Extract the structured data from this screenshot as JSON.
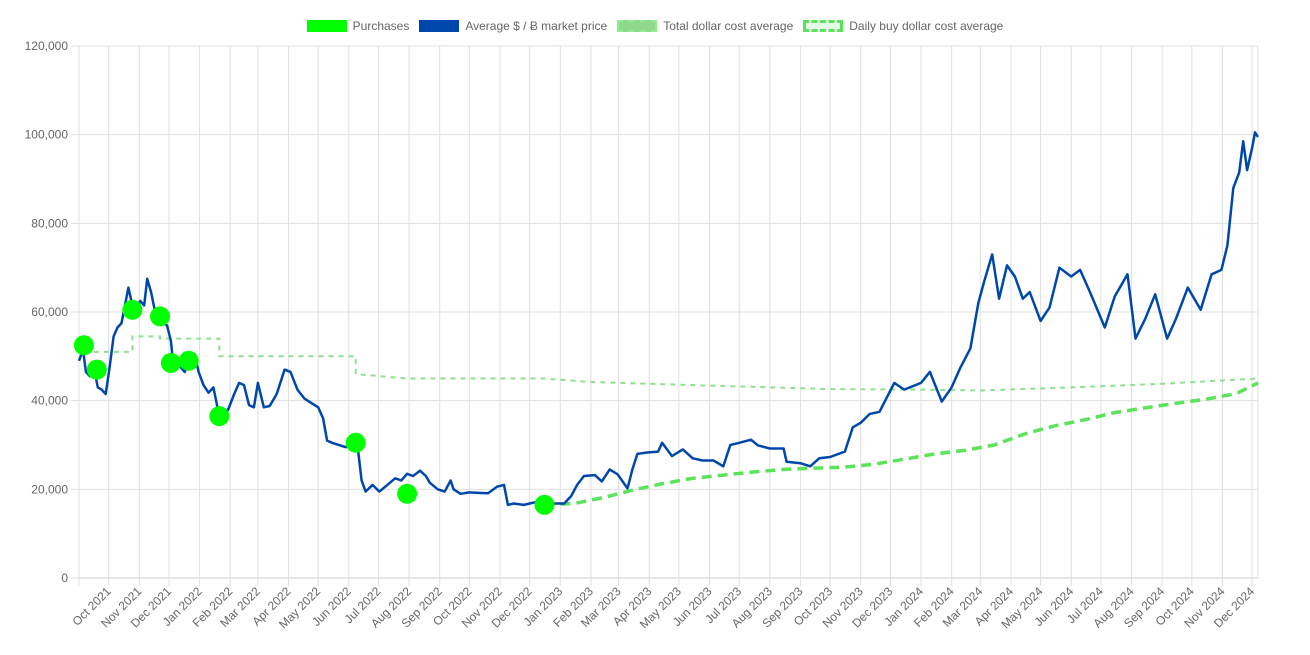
{
  "legend": [
    {
      "label": "Purchases",
      "key": "purchases"
    },
    {
      "label": "Average $ / Ƀ market price",
      "key": "market"
    },
    {
      "label": "Total dollar cost average",
      "key": "total"
    },
    {
      "label": "Daily buy dollar cost average",
      "key": "daily"
    }
  ],
  "colors": {
    "purchases": "#00ff00",
    "market": "#0047ab",
    "total": "#90e090",
    "daily": "#5be35b",
    "grid": "#e0e0e0",
    "tick": "#666666"
  },
  "chart_data": {
    "type": "line",
    "title": "",
    "xlabel": "",
    "ylabel": "",
    "ylim": [
      0,
      120000
    ],
    "y_ticks": [
      "0",
      "20,000",
      "40,000",
      "60,000",
      "80,000",
      "100,000",
      "120,000"
    ],
    "y_tick_values": [
      0,
      20000,
      40000,
      60000,
      80000,
      100000,
      120000
    ],
    "x_range": [
      "2021-09-01",
      "2024-12-07"
    ],
    "x_ticks": [
      {
        "label": "Oct 2021",
        "date": "2021-10-01"
      },
      {
        "label": "Nov 2021",
        "date": "2021-11-01"
      },
      {
        "label": "Dec 2021",
        "date": "2021-12-01"
      },
      {
        "label": "Jan 2022",
        "date": "2022-01-01"
      },
      {
        "label": "Feb 2022",
        "date": "2022-02-01"
      },
      {
        "label": "Mar 2022",
        "date": "2022-03-01"
      },
      {
        "label": "Apr 2022",
        "date": "2022-04-01"
      },
      {
        "label": "May 2022",
        "date": "2022-05-01"
      },
      {
        "label": "Jun 2022",
        "date": "2022-06-01"
      },
      {
        "label": "Jul 2022",
        "date": "2022-07-01"
      },
      {
        "label": "Aug 2022",
        "date": "2022-08-01"
      },
      {
        "label": "Sep 2022",
        "date": "2022-09-01"
      },
      {
        "label": "Oct 2022",
        "date": "2022-10-01"
      },
      {
        "label": "Nov 2022",
        "date": "2022-11-01"
      },
      {
        "label": "Dec 2022",
        "date": "2022-12-01"
      },
      {
        "label": "Jan 2023",
        "date": "2023-01-01"
      },
      {
        "label": "Feb 2023",
        "date": "2023-02-01"
      },
      {
        "label": "Mar 2023",
        "date": "2023-03-01"
      },
      {
        "label": "Apr 2023",
        "date": "2023-04-01"
      },
      {
        "label": "May 2023",
        "date": "2023-05-01"
      },
      {
        "label": "Jun 2023",
        "date": "2023-06-01"
      },
      {
        "label": "Jul 2023",
        "date": "2023-07-01"
      },
      {
        "label": "Aug 2023",
        "date": "2023-08-01"
      },
      {
        "label": "Sep 2023",
        "date": "2023-09-01"
      },
      {
        "label": "Oct 2023",
        "date": "2023-10-01"
      },
      {
        "label": "Nov 2023",
        "date": "2023-11-01"
      },
      {
        "label": "Dec 2023",
        "date": "2023-12-01"
      },
      {
        "label": "Jan 2024",
        "date": "2024-01-01"
      },
      {
        "label": "Feb 2024",
        "date": "2024-02-01"
      },
      {
        "label": "Mar 2024",
        "date": "2024-03-01"
      },
      {
        "label": "Apr 2024",
        "date": "2024-04-01"
      },
      {
        "label": "May 2024",
        "date": "2024-05-01"
      },
      {
        "label": "Jun 2024",
        "date": "2024-06-01"
      },
      {
        "label": "Jul 2024",
        "date": "2024-07-01"
      },
      {
        "label": "Aug 2024",
        "date": "2024-08-01"
      },
      {
        "label": "Sep 2024",
        "date": "2024-09-01"
      },
      {
        "label": "Oct 2024",
        "date": "2024-10-01"
      },
      {
        "label": "Nov 2024",
        "date": "2024-11-01"
      },
      {
        "label": "Dec 2024",
        "date": "2024-12-01"
      }
    ],
    "grid": true,
    "legend_position": "top",
    "series": [
      {
        "name": "Purchases",
        "type": "scatter",
        "points": [
          [
            "2021-09-06",
            52500
          ],
          [
            "2021-09-19",
            47000
          ],
          [
            "2021-10-25",
            60500
          ],
          [
            "2021-11-22",
            59000
          ],
          [
            "2021-12-03",
            48500
          ],
          [
            "2021-12-21",
            49000
          ],
          [
            "2022-01-21",
            36500
          ],
          [
            "2022-06-08",
            30500
          ],
          [
            "2022-07-30",
            19000
          ],
          [
            "2022-12-16",
            16500
          ]
        ]
      },
      {
        "name": "Average $ / Ƀ market price",
        "type": "line",
        "points": [
          [
            "2021-09-01",
            49000
          ],
          [
            "2021-09-05",
            51500
          ],
          [
            "2021-09-08",
            46500
          ],
          [
            "2021-09-12",
            45500
          ],
          [
            "2021-09-16",
            47500
          ],
          [
            "2021-09-20",
            43000
          ],
          [
            "2021-09-24",
            42500
          ],
          [
            "2021-09-28",
            41500
          ],
          [
            "2021-10-02",
            47500
          ],
          [
            "2021-10-06",
            54500
          ],
          [
            "2021-10-10",
            56500
          ],
          [
            "2021-10-14",
            57500
          ],
          [
            "2021-10-18",
            62000
          ],
          [
            "2021-10-21",
            65500
          ],
          [
            "2021-10-25",
            61500
          ],
          [
            "2021-10-29",
            61000
          ],
          [
            "2021-11-02",
            62500
          ],
          [
            "2021-11-06",
            61500
          ],
          [
            "2021-11-09",
            67500
          ],
          [
            "2021-11-13",
            64500
          ],
          [
            "2021-11-17",
            60000
          ],
          [
            "2021-11-21",
            58500
          ],
          [
            "2021-11-25",
            57500
          ],
          [
            "2021-11-29",
            57000
          ],
          [
            "2021-12-03",
            53500
          ],
          [
            "2021-12-05",
            49000
          ],
          [
            "2021-12-09",
            48500
          ],
          [
            "2021-12-13",
            47500
          ],
          [
            "2021-12-17",
            46500
          ],
          [
            "2021-12-21",
            48500
          ],
          [
            "2021-12-27",
            50500
          ],
          [
            "2021-12-31",
            46500
          ],
          [
            "2022-01-05",
            43500
          ],
          [
            "2022-01-10",
            41800
          ],
          [
            "2022-01-15",
            43000
          ],
          [
            "2022-01-21",
            36500
          ],
          [
            "2022-01-24",
            36000
          ],
          [
            "2022-01-30",
            38000
          ],
          [
            "2022-02-05",
            41500
          ],
          [
            "2022-02-10",
            44000
          ],
          [
            "2022-02-15",
            43500
          ],
          [
            "2022-02-20",
            39000
          ],
          [
            "2022-02-25",
            38500
          ],
          [
            "2022-03-01",
            44000
          ],
          [
            "2022-03-07",
            38500
          ],
          [
            "2022-03-13",
            38800
          ],
          [
            "2022-03-20",
            41500
          ],
          [
            "2022-03-28",
            47000
          ],
          [
            "2022-04-03",
            46500
          ],
          [
            "2022-04-10",
            42500
          ],
          [
            "2022-04-17",
            40500
          ],
          [
            "2022-04-24",
            39500
          ],
          [
            "2022-05-01",
            38500
          ],
          [
            "2022-05-06",
            36000
          ],
          [
            "2022-05-10",
            31000
          ],
          [
            "2022-05-15",
            30500
          ],
          [
            "2022-05-22",
            30000
          ],
          [
            "2022-05-29",
            29500
          ],
          [
            "2022-06-05",
            30500
          ],
          [
            "2022-06-10",
            29500
          ],
          [
            "2022-06-14",
            22000
          ],
          [
            "2022-06-18",
            19500
          ],
          [
            "2022-06-25",
            21000
          ],
          [
            "2022-07-02",
            19500
          ],
          [
            "2022-07-10",
            21000
          ],
          [
            "2022-07-18",
            22500
          ],
          [
            "2022-07-24",
            22000
          ],
          [
            "2022-07-30",
            23500
          ],
          [
            "2022-08-05",
            23000
          ],
          [
            "2022-08-12",
            24200
          ],
          [
            "2022-08-18",
            23000
          ],
          [
            "2022-08-22",
            21500
          ],
          [
            "2022-08-30",
            20000
          ],
          [
            "2022-09-06",
            19500
          ],
          [
            "2022-09-12",
            22000
          ],
          [
            "2022-09-15",
            20000
          ],
          [
            "2022-09-22",
            19000
          ],
          [
            "2022-10-01",
            19300
          ],
          [
            "2022-10-10",
            19200
          ],
          [
            "2022-10-20",
            19100
          ],
          [
            "2022-10-29",
            20600
          ],
          [
            "2022-11-05",
            21000
          ],
          [
            "2022-11-09",
            16500
          ],
          [
            "2022-11-15",
            16800
          ],
          [
            "2022-11-25",
            16500
          ],
          [
            "2022-12-05",
            17000
          ],
          [
            "2022-12-15",
            17200
          ],
          [
            "2022-12-25",
            16800
          ],
          [
            "2023-01-05",
            16800
          ],
          [
            "2023-01-12",
            18500
          ],
          [
            "2023-01-18",
            21000
          ],
          [
            "2023-01-25",
            23000
          ],
          [
            "2023-02-05",
            23200
          ],
          [
            "2023-02-12",
            21800
          ],
          [
            "2023-02-20",
            24500
          ],
          [
            "2023-02-28",
            23400
          ],
          [
            "2023-03-10",
            20200
          ],
          [
            "2023-03-15",
            24500
          ],
          [
            "2023-03-20",
            28000
          ],
          [
            "2023-03-30",
            28300
          ],
          [
            "2023-04-10",
            28500
          ],
          [
            "2023-04-14",
            30500
          ],
          [
            "2023-04-24",
            27500
          ],
          [
            "2023-05-05",
            29000
          ],
          [
            "2023-05-15",
            27000
          ],
          [
            "2023-05-25",
            26500
          ],
          [
            "2023-06-05",
            26500
          ],
          [
            "2023-06-15",
            25200
          ],
          [
            "2023-06-22",
            30000
          ],
          [
            "2023-07-01",
            30500
          ],
          [
            "2023-07-13",
            31200
          ],
          [
            "2023-07-20",
            29900
          ],
          [
            "2023-08-01",
            29200
          ],
          [
            "2023-08-15",
            29200
          ],
          [
            "2023-08-18",
            26200
          ],
          [
            "2023-09-01",
            25900
          ],
          [
            "2023-09-11",
            25200
          ],
          [
            "2023-09-20",
            27000
          ],
          [
            "2023-10-01",
            27300
          ],
          [
            "2023-10-16",
            28500
          ],
          [
            "2023-10-24",
            34000
          ],
          [
            "2023-11-01",
            35000
          ],
          [
            "2023-11-10",
            37000
          ],
          [
            "2023-11-20",
            37500
          ],
          [
            "2023-12-05",
            44000
          ],
          [
            "2023-12-15",
            42500
          ],
          [
            "2024-01-01",
            44000
          ],
          [
            "2024-01-10",
            46500
          ],
          [
            "2024-01-22",
            39800
          ],
          [
            "2024-02-01",
            43000
          ],
          [
            "2024-02-10",
            47500
          ],
          [
            "2024-02-20",
            51800
          ],
          [
            "2024-02-28",
            62000
          ],
          [
            "2024-03-05",
            67000
          ],
          [
            "2024-03-13",
            73000
          ],
          [
            "2024-03-20",
            63000
          ],
          [
            "2024-03-28",
            70500
          ],
          [
            "2024-04-05",
            68000
          ],
          [
            "2024-04-13",
            63000
          ],
          [
            "2024-04-20",
            64500
          ],
          [
            "2024-05-01",
            58000
          ],
          [
            "2024-05-10",
            61000
          ],
          [
            "2024-05-20",
            70000
          ],
          [
            "2024-06-01",
            68000
          ],
          [
            "2024-06-10",
            69500
          ],
          [
            "2024-06-20",
            64500
          ],
          [
            "2024-07-05",
            56500
          ],
          [
            "2024-07-15",
            63500
          ],
          [
            "2024-07-28",
            68500
          ],
          [
            "2024-08-05",
            54000
          ],
          [
            "2024-08-15",
            58500
          ],
          [
            "2024-08-25",
            64000
          ],
          [
            "2024-09-06",
            54000
          ],
          [
            "2024-09-15",
            58500
          ],
          [
            "2024-09-27",
            65500
          ],
          [
            "2024-10-10",
            60500
          ],
          [
            "2024-10-21",
            68500
          ],
          [
            "2024-10-31",
            69500
          ],
          [
            "2024-11-06",
            75000
          ],
          [
            "2024-11-12",
            88000
          ],
          [
            "2024-11-18",
            91500
          ],
          [
            "2024-11-22",
            98500
          ],
          [
            "2024-11-26",
            92000
          ],
          [
            "2024-12-01",
            97000
          ],
          [
            "2024-12-04",
            100500
          ],
          [
            "2024-12-07",
            99500
          ]
        ]
      },
      {
        "name": "Total dollar cost average",
        "type": "line-step",
        "points": [
          [
            "2021-09-06",
            51000
          ],
          [
            "2021-10-25",
            51000
          ],
          [
            "2021-10-25",
            54500
          ],
          [
            "2021-11-22",
            54500
          ],
          [
            "2021-11-22",
            54000
          ],
          [
            "2022-01-21",
            54000
          ],
          [
            "2022-01-21",
            50000
          ],
          [
            "2022-06-08",
            50000
          ],
          [
            "2022-06-08",
            46000
          ],
          [
            "2022-07-30",
            45000
          ],
          [
            "2022-12-16",
            45000
          ],
          [
            "2023-02-01",
            44200
          ],
          [
            "2023-06-01",
            43400
          ],
          [
            "2023-10-01",
            42600
          ],
          [
            "2024-01-01",
            42500
          ],
          [
            "2024-03-01",
            42300
          ],
          [
            "2024-06-01",
            43000
          ],
          [
            "2024-09-01",
            43800
          ],
          [
            "2024-12-07",
            45000
          ]
        ]
      },
      {
        "name": "Daily buy dollar cost average",
        "type": "line",
        "points": [
          [
            "2022-12-16",
            16500
          ],
          [
            "2023-01-15",
            16800
          ],
          [
            "2023-02-15",
            18200
          ],
          [
            "2023-03-15",
            19800
          ],
          [
            "2023-04-15",
            21300
          ],
          [
            "2023-05-15",
            22500
          ],
          [
            "2023-06-15",
            23200
          ],
          [
            "2023-07-15",
            23900
          ],
          [
            "2023-08-15",
            24500
          ],
          [
            "2023-09-15",
            24800
          ],
          [
            "2023-10-15",
            25000
          ],
          [
            "2023-11-15",
            25700
          ],
          [
            "2023-12-15",
            26800
          ],
          [
            "2024-01-15",
            28000
          ],
          [
            "2024-02-15",
            28800
          ],
          [
            "2024-03-15",
            30000
          ],
          [
            "2024-04-15",
            32500
          ],
          [
            "2024-05-15",
            34300
          ],
          [
            "2024-06-15",
            35700
          ],
          [
            "2024-07-15",
            37300
          ],
          [
            "2024-08-15",
            38400
          ],
          [
            "2024-09-15",
            39400
          ],
          [
            "2024-10-15",
            40300
          ],
          [
            "2024-11-15",
            41600
          ],
          [
            "2024-12-07",
            44000
          ]
        ]
      }
    ]
  }
}
